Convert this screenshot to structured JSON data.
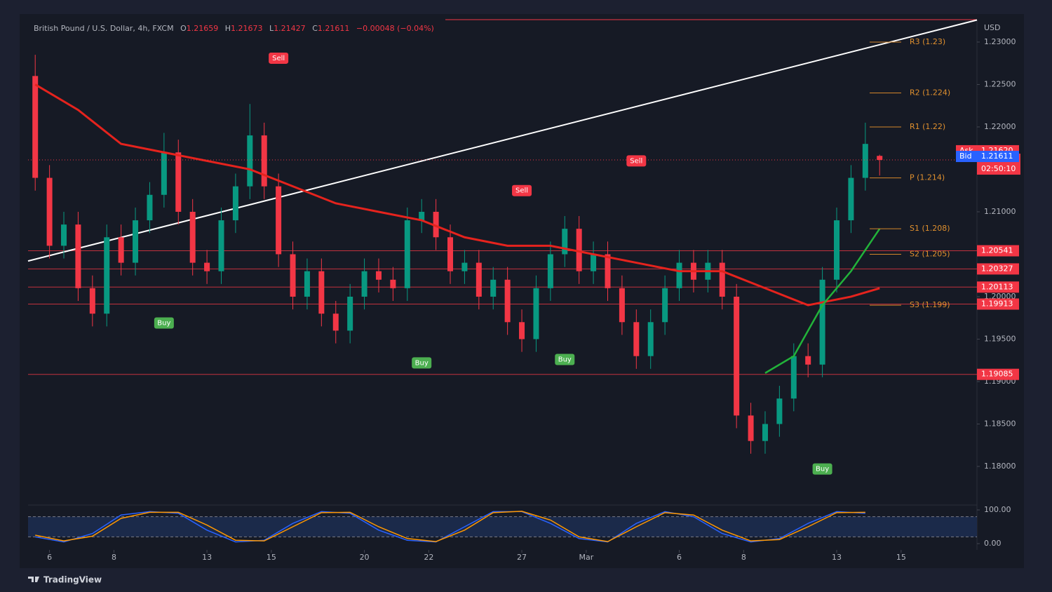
{
  "chart_data": {
    "type": "candlestick",
    "title": "British Pound / U.S. Dollar, 4h, FXCM",
    "ohlc_labels": [
      "O",
      "H",
      "L",
      "C"
    ],
    "ohlc": [
      1.21659,
      1.21673,
      1.21427,
      1.21611
    ],
    "change": {
      "value": -0.00048,
      "label": "−0.00048 (−0.04%)"
    },
    "currency": "USD",
    "brand": "TradingView",
    "grid": false,
    "up_color": "#089981",
    "down_color": "#f23645",
    "xlim": [
      -0.5,
      65.8
    ],
    "xticks": [
      {
        "value": 1,
        "label": "6"
      },
      {
        "value": 5.5,
        "label": "8"
      },
      {
        "value": 12,
        "label": "13"
      },
      {
        "value": 16.5,
        "label": "15"
      },
      {
        "value": 23,
        "label": "20"
      },
      {
        "value": 27.5,
        "label": "22"
      },
      {
        "value": 34,
        "label": "27"
      },
      {
        "value": 38.5,
        "label": "Mar"
      },
      {
        "value": 45,
        "label": "6"
      },
      {
        "value": 49.5,
        "label": "8"
      },
      {
        "value": 56,
        "label": "13"
      },
      {
        "value": 60.5,
        "label": "15"
      }
    ],
    "ylim": [
      1.17562,
      1.23264
    ],
    "yticks": [
      {
        "value": 1.18,
        "label": "1.18000"
      },
      {
        "value": 1.185,
        "label": "1.18500"
      },
      {
        "value": 1.19,
        "label": "1.19000"
      },
      {
        "value": 1.195,
        "label": "1.19500"
      },
      {
        "value": 1.2,
        "label": "1.20000"
      },
      {
        "value": 1.205,
        "label": "1.20500"
      },
      {
        "value": 1.21,
        "label": "1.21000"
      },
      {
        "value": 1.215,
        "label": "1.21500"
      },
      {
        "value": 1.22,
        "label": "1.22000"
      },
      {
        "value": 1.225,
        "label": "1.22500"
      },
      {
        "value": 1.23,
        "label": "1.23000"
      }
    ],
    "open": [
      1.226,
      1.214,
      1.206,
      1.2085,
      1.201,
      1.198,
      1.207,
      1.204,
      1.209,
      1.212,
      1.217,
      1.21,
      1.204,
      1.203,
      1.209,
      1.213,
      1.219,
      1.213,
      1.205,
      1.2,
      1.203,
      1.198,
      1.196,
      1.2,
      1.203,
      1.202,
      1.201,
      1.209,
      1.21,
      1.207,
      1.203,
      1.204,
      1.2,
      1.202,
      1.197,
      1.195,
      1.201,
      1.205,
      1.208,
      1.203,
      1.205,
      1.201,
      1.197,
      1.193,
      1.197,
      1.201,
      1.204,
      1.202,
      1.204,
      1.2,
      1.186,
      1.183,
      1.185,
      1.188,
      1.193,
      1.192,
      1.202,
      1.209,
      1.214,
      1.21659
    ],
    "high": [
      1.2285,
      1.2155,
      1.21,
      1.21,
      1.2025,
      1.2085,
      1.2085,
      1.2105,
      1.2135,
      1.2193,
      1.2185,
      1.2115,
      1.2055,
      1.2105,
      1.2145,
      1.2227,
      1.2205,
      1.2145,
      1.2065,
      1.2045,
      1.2045,
      1.1995,
      1.2015,
      1.2045,
      1.2045,
      1.2035,
      1.2105,
      1.2115,
      1.2115,
      1.2085,
      1.2055,
      1.2055,
      1.2035,
      1.2035,
      1.1985,
      1.2025,
      1.2065,
      1.2095,
      1.2095,
      1.2065,
      1.2065,
      1.2025,
      1.1985,
      1.1985,
      1.2025,
      1.2055,
      1.2055,
      1.2055,
      1.2055,
      1.2015,
      1.1875,
      1.1865,
      1.1895,
      1.1945,
      1.1945,
      1.2035,
      1.2105,
      1.2155,
      1.2205,
      1.21673
    ],
    "low": [
      1.2125,
      1.2045,
      1.2045,
      1.1995,
      1.1965,
      1.1965,
      1.2025,
      1.2025,
      1.2075,
      1.2105,
      1.2085,
      1.2025,
      1.2015,
      1.2015,
      1.2075,
      1.2115,
      1.2115,
      1.2035,
      1.1985,
      1.1985,
      1.1965,
      1.1945,
      1.1945,
      1.1985,
      1.2005,
      1.1995,
      1.1995,
      1.2075,
      1.2055,
      1.2015,
      1.2015,
      1.1985,
      1.1985,
      1.1955,
      1.1935,
      1.1935,
      1.1995,
      1.2035,
      1.2015,
      1.2015,
      1.1995,
      1.1955,
      1.1915,
      1.1915,
      1.1955,
      1.1995,
      1.2005,
      1.2005,
      1.1985,
      1.1845,
      1.1815,
      1.1815,
      1.1835,
      1.1865,
      1.1905,
      1.1905,
      1.2005,
      1.2075,
      1.2125,
      1.21427
    ],
    "close": [
      1.214,
      1.206,
      1.2085,
      1.201,
      1.198,
      1.207,
      1.204,
      1.209,
      1.212,
      1.217,
      1.21,
      1.204,
      1.203,
      1.209,
      1.213,
      1.219,
      1.213,
      1.205,
      1.2,
      1.203,
      1.198,
      1.196,
      1.2,
      1.203,
      1.202,
      1.201,
      1.209,
      1.21,
      1.207,
      1.203,
      1.204,
      1.2,
      1.202,
      1.197,
      1.195,
      1.201,
      1.205,
      1.208,
      1.203,
      1.205,
      1.201,
      1.197,
      1.193,
      1.197,
      1.201,
      1.204,
      1.202,
      1.204,
      1.2,
      1.186,
      1.183,
      1.185,
      1.188,
      1.193,
      1.192,
      1.202,
      1.209,
      1.214,
      1.218,
      1.21611
    ],
    "ma": {
      "color": "#e5231d",
      "x": [
        0,
        3,
        6,
        9,
        12,
        15,
        18,
        21,
        24,
        27,
        30,
        33,
        36,
        39,
        42,
        45,
        48,
        51,
        54,
        57,
        59
      ],
      "values": [
        1.225,
        1.222,
        1.218,
        1.217,
        1.216,
        1.215,
        1.213,
        1.211,
        1.21,
        1.209,
        1.207,
        1.206,
        1.206,
        1.205,
        1.204,
        1.203,
        1.203,
        1.201,
        1.199,
        1.2,
        1.201
      ]
    },
    "trend": {
      "color": "#ffffff",
      "x": [
        65.8,
        -0.5
      ],
      "values": [
        1.2326,
        1.2042
      ]
    },
    "fast": {
      "color": "#22b33a",
      "x": [
        51,
        53,
        55,
        57,
        59
      ],
      "values": [
        1.191,
        1.193,
        1.199,
        1.203,
        1.208
      ]
    },
    "levels": [
      1.20541,
      1.20327,
      1.20113,
      1.19913,
      1.19085
    ],
    "pivots": [
      {
        "value": 1.23,
        "label": "R3 (1.23)"
      },
      {
        "value": 1.224,
        "label": "R2 (1.224)"
      },
      {
        "value": 1.22,
        "label": "R1 (1.22)"
      },
      {
        "value": 1.214,
        "label": "P (1.214)"
      },
      {
        "value": 1.208,
        "label": "S1 (1.208)"
      },
      {
        "value": 1.205,
        "label": "S2 (1.205)"
      },
      {
        "value": 1.199,
        "label": "S3 (1.199)"
      }
    ],
    "quote": {
      "ask_label": "Ask",
      "ask": {
        "value": 1.2162,
        "label": "1.21620"
      },
      "bid_label": "Bid",
      "bid": 1.21611,
      "last": 1.21611,
      "countdown": "02:50:10"
    },
    "signals": [
      {
        "label": "Sell",
        "x": 17,
        "price": 1.2281
      },
      {
        "label": "Buy",
        "x": 9,
        "price": 1.1969
      },
      {
        "label": "Buy",
        "x": 27,
        "price": 1.1922
      },
      {
        "label": "Sell",
        "x": 34,
        "price": 1.2125
      },
      {
        "label": "Buy",
        "x": 37,
        "price": 1.1926
      },
      {
        "label": "Sell",
        "x": 42,
        "price": 1.216
      },
      {
        "label": "Buy",
        "x": 55,
        "price": 1.1797
      }
    ],
    "oscillator": {
      "ylim": [
        0,
        100
      ],
      "yticks": [
        {
          "value": 0,
          "label": "0.00"
        },
        {
          "value": 100,
          "label": "100.00"
        }
      ],
      "band": [
        20,
        80
      ],
      "series": [
        {
          "color": "#2962ff",
          "x": [
            0,
            2,
            4,
            6,
            8,
            10,
            12,
            14,
            16,
            18,
            20,
            22,
            24,
            26,
            28,
            30,
            32,
            34,
            36,
            38,
            40,
            42,
            44,
            46,
            48,
            50,
            52,
            54,
            56,
            58
          ],
          "values": [
            20,
            5,
            30,
            85,
            95,
            90,
            40,
            5,
            10,
            60,
            95,
            90,
            40,
            10,
            5,
            50,
            95,
            95,
            60,
            15,
            5,
            60,
            95,
            80,
            30,
            5,
            15,
            60,
            95,
            90
          ]
        },
        {
          "color": "#ff9800",
          "x": [
            0,
            2,
            4,
            6,
            8,
            10,
            12,
            14,
            16,
            18,
            20,
            22,
            24,
            26,
            28,
            30,
            32,
            34,
            36,
            38,
            40,
            42,
            44,
            46,
            48,
            50,
            52,
            54,
            56,
            58
          ],
          "values": [
            25,
            8,
            22,
            75,
            93,
            93,
            55,
            10,
            8,
            50,
            92,
            93,
            50,
            15,
            6,
            40,
            92,
            96,
            70,
            20,
            6,
            50,
            92,
            85,
            40,
            8,
            12,
            50,
            92,
            93
          ]
        }
      ]
    }
  }
}
